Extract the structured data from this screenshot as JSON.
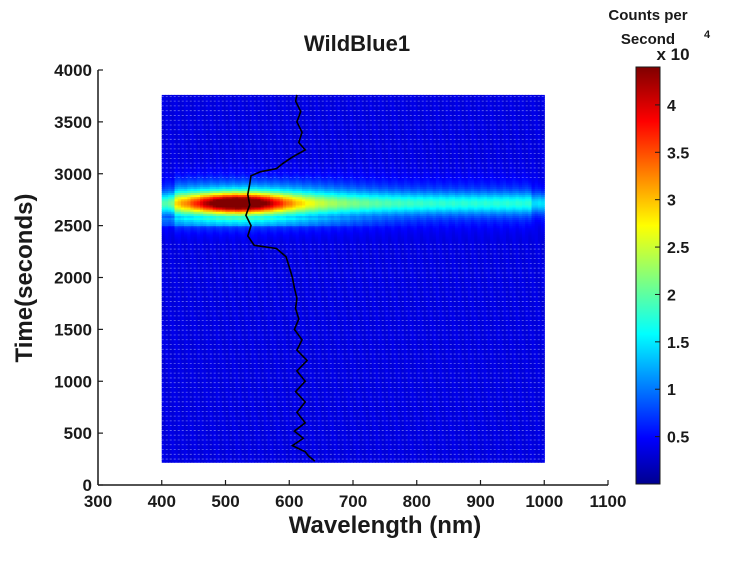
{
  "chart_data": {
    "type": "heatmap",
    "title": "WildBlue1",
    "xlabel": "Wavelength (nm)",
    "ylabel": "Time(seconds)",
    "xlim": [
      300,
      1100
    ],
    "ylim": [
      0,
      4000
    ],
    "xticks": [
      300,
      400,
      500,
      600,
      700,
      800,
      900,
      1000,
      1100
    ],
    "yticks": [
      0,
      500,
      1000,
      1500,
      2000,
      2500,
      3000,
      3500,
      4000
    ],
    "data_extent": {
      "x": [
        400,
        1000
      ],
      "y": [
        220,
        3760
      ]
    },
    "colormap": "jet",
    "colorbar": {
      "label_lines": [
        "Counts per",
        "Second"
      ],
      "multiplier": "x 10",
      "multiplier_exponent": "4",
      "range": [
        0,
        4.4
      ],
      "ticks": [
        0.5,
        1,
        1.5,
        2,
        2.5,
        3,
        3.5,
        4
      ],
      "tick_labels": [
        "0.5",
        "1",
        "1.5",
        "2",
        "2.5",
        "3",
        "3.5",
        "4"
      ]
    },
    "hotspot": {
      "description": "High-intensity band",
      "time_range": [
        2400,
        2900
      ],
      "peak_time": 2720,
      "peak_wavelength": 520,
      "peak_value": 4.3
    },
    "overlay_line": {
      "name": "peak wavelength trace",
      "color": "#000000",
      "points": [
        [
          640,
          230
        ],
        [
          630,
          280
        ],
        [
          625,
          320
        ],
        [
          605,
          380
        ],
        [
          622,
          450
        ],
        [
          608,
          520
        ],
        [
          625,
          600
        ],
        [
          612,
          700
        ],
        [
          625,
          800
        ],
        [
          610,
          900
        ],
        [
          625,
          1000
        ],
        [
          612,
          1100
        ],
        [
          628,
          1200
        ],
        [
          612,
          1300
        ],
        [
          620,
          1400
        ],
        [
          608,
          1500
        ],
        [
          615,
          1600
        ],
        [
          610,
          1700
        ],
        [
          612,
          1800
        ],
        [
          608,
          1900
        ],
        [
          605,
          2000
        ],
        [
          600,
          2100
        ],
        [
          595,
          2200
        ],
        [
          580,
          2280
        ],
        [
          545,
          2310
        ],
        [
          535,
          2400
        ],
        [
          540,
          2500
        ],
        [
          532,
          2600
        ],
        [
          538,
          2700
        ],
        [
          535,
          2800
        ],
        [
          538,
          2900
        ],
        [
          540,
          2980
        ],
        [
          555,
          3020
        ],
        [
          580,
          3050
        ],
        [
          590,
          3100
        ],
        [
          605,
          3160
        ],
        [
          625,
          3230
        ],
        [
          615,
          3300
        ],
        [
          620,
          3400
        ],
        [
          612,
          3500
        ],
        [
          618,
          3600
        ],
        [
          610,
          3700
        ],
        [
          612,
          3760
        ]
      ]
    },
    "colors": {
      "background_field": "#1f3fd0",
      "axis": "#1a1a1a",
      "gap_lines": "#e6ecff"
    }
  }
}
